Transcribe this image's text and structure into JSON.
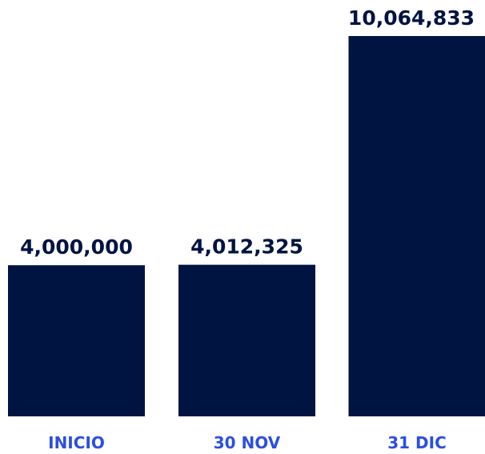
{
  "chart_data": {
    "type": "bar",
    "categories": [
      "INICIO",
      "30 NOV",
      "31 DIC"
    ],
    "values": [
      4000000,
      4012325,
      10064833
    ],
    "value_labels": [
      "4,000,000",
      "4,012,325",
      "10,064,833"
    ],
    "color": "#001442"
  }
}
